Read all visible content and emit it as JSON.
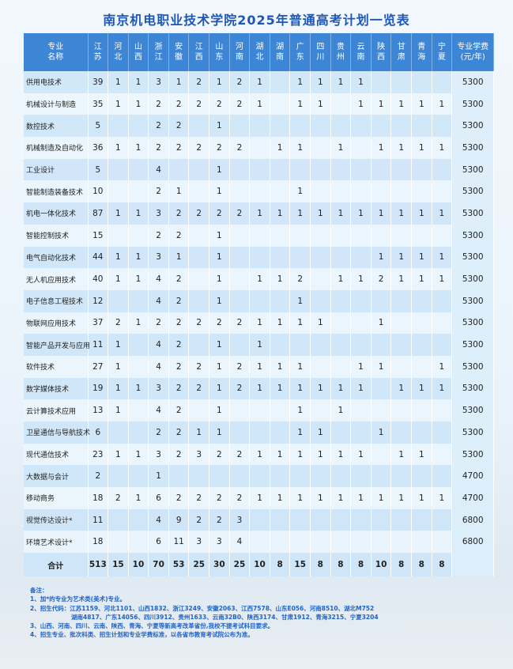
{
  "title": "南京机电职业技术学院2025年普通高考计划一览表",
  "header": {
    "major": "专业\n名称",
    "provinces": [
      "江苏",
      "河北",
      "山西",
      "浙江",
      "安徽",
      "江西",
      "山东",
      "河南",
      "湖北",
      "湖南",
      "广东",
      "四川",
      "贵州",
      "云南",
      "陕西",
      "甘肃",
      "青海",
      "宁夏"
    ],
    "fee": "专业学费\n(元/年)"
  },
  "rows": [
    {
      "name": "供用电技术",
      "v": [
        "39",
        "1",
        "1",
        "3",
        "1",
        "2",
        "1",
        "2",
        "1",
        "",
        "1",
        "1",
        "1",
        "1",
        "",
        "",
        "",
        ""
      ],
      "fee": "5300"
    },
    {
      "name": "机械设计与制造",
      "v": [
        "35",
        "1",
        "1",
        "2",
        "2",
        "2",
        "2",
        "2",
        "1",
        "",
        "1",
        "1",
        "",
        "1",
        "1",
        "1",
        "1",
        "1"
      ],
      "fee": "5300"
    },
    {
      "name": "数控技术",
      "v": [
        "5",
        "",
        "",
        "2",
        "2",
        "",
        "1",
        "",
        "",
        "",
        "",
        "",
        "",
        "",
        "",
        "",
        "",
        ""
      ],
      "fee": "5300"
    },
    {
      "name": "机械制造及自动化",
      "v": [
        "36",
        "1",
        "1",
        "2",
        "2",
        "2",
        "2",
        "2",
        "",
        "1",
        "1",
        "",
        "1",
        "",
        "1",
        "1",
        "1",
        "1"
      ],
      "fee": "5300"
    },
    {
      "name": "工业设计",
      "v": [
        "5",
        "",
        "",
        "4",
        "",
        "",
        "1",
        "",
        "",
        "",
        "",
        "",
        "",
        "",
        "",
        "",
        "",
        ""
      ],
      "fee": "5300"
    },
    {
      "name": "智能制造装备技术",
      "v": [
        "10",
        "",
        "",
        "2",
        "1",
        "",
        "1",
        "",
        "",
        "",
        "1",
        "",
        "",
        "",
        "",
        "",
        "",
        ""
      ],
      "fee": "5300"
    },
    {
      "name": "机电一体化技术",
      "v": [
        "87",
        "1",
        "1",
        "3",
        "2",
        "2",
        "2",
        "2",
        "1",
        "1",
        "1",
        "1",
        "1",
        "1",
        "1",
        "1",
        "1",
        "1"
      ],
      "fee": "5300"
    },
    {
      "name": "智能控制技术",
      "v": [
        "15",
        "",
        "",
        "2",
        "2",
        "",
        "1",
        "",
        "",
        "",
        "",
        "",
        "",
        "",
        "",
        "",
        "",
        ""
      ],
      "fee": "5300"
    },
    {
      "name": "电气自动化技术",
      "v": [
        "44",
        "1",
        "1",
        "3",
        "1",
        "",
        "1",
        "",
        "",
        "",
        "",
        "",
        "",
        "",
        "1",
        "1",
        "1",
        "1"
      ],
      "fee": "5300"
    },
    {
      "name": "无人机应用技术",
      "v": [
        "40",
        "1",
        "1",
        "4",
        "2",
        "",
        "1",
        "",
        "1",
        "1",
        "2",
        "",
        "1",
        "1",
        "2",
        "1",
        "1",
        "1"
      ],
      "fee": "5300"
    },
    {
      "name": "电子信息工程技术",
      "v": [
        "12",
        "",
        "",
        "4",
        "2",
        "",
        "1",
        "",
        "",
        "",
        "1",
        "",
        "",
        "",
        "",
        "",
        "",
        ""
      ],
      "fee": "5300"
    },
    {
      "name": "物联网应用技术",
      "v": [
        "37",
        "2",
        "1",
        "2",
        "2",
        "2",
        "2",
        "2",
        "1",
        "1",
        "1",
        "1",
        "",
        "",
        "1",
        "",
        "",
        ""
      ],
      "fee": "5300"
    },
    {
      "name": "智能产品开发与应用",
      "v": [
        "11",
        "1",
        "",
        "4",
        "2",
        "",
        "1",
        "",
        "1",
        "",
        "",
        "",
        "",
        "",
        "",
        "",
        "",
        ""
      ],
      "fee": "5300"
    },
    {
      "name": "软件技术",
      "v": [
        "27",
        "1",
        "",
        "4",
        "2",
        "2",
        "1",
        "2",
        "1",
        "1",
        "1",
        "",
        "",
        "1",
        "1",
        "",
        "",
        "1"
      ],
      "fee": "5300"
    },
    {
      "name": "数字媒体技术",
      "v": [
        "19",
        "1",
        "1",
        "3",
        "2",
        "2",
        "1",
        "2",
        "1",
        "1",
        "1",
        "1",
        "1",
        "1",
        "",
        "1",
        "1",
        "1"
      ],
      "fee": "5300"
    },
    {
      "name": "云计算技术应用",
      "v": [
        "13",
        "1",
        "",
        "4",
        "2",
        "",
        "1",
        "",
        "",
        "",
        "1",
        "",
        "1",
        "",
        "",
        "",
        "",
        ""
      ],
      "fee": "5300"
    },
    {
      "name": "卫星通信与导航技术",
      "v": [
        "6",
        "",
        "",
        "2",
        "2",
        "1",
        "1",
        "",
        "",
        "",
        "1",
        "1",
        "",
        "",
        "1",
        "",
        "",
        ""
      ],
      "fee": "5300"
    },
    {
      "name": "现代通信技术",
      "v": [
        "23",
        "1",
        "1",
        "3",
        "2",
        "3",
        "2",
        "2",
        "1",
        "1",
        "1",
        "1",
        "1",
        "1",
        "",
        "1",
        "1",
        ""
      ],
      "fee": "5300"
    },
    {
      "name": "大数据与会计",
      "v": [
        "2",
        "",
        "",
        "1",
        "",
        "",
        "",
        "",
        "",
        "",
        "",
        "",
        "",
        "",
        "",
        "",
        "",
        ""
      ],
      "fee": "4700"
    },
    {
      "name": "移动商务",
      "v": [
        "18",
        "2",
        "1",
        "6",
        "2",
        "2",
        "2",
        "2",
        "1",
        "1",
        "1",
        "1",
        "1",
        "1",
        "1",
        "1",
        "1",
        "1"
      ],
      "fee": "4700"
    },
    {
      "name": "视觉传达设计*",
      "v": [
        "11",
        "",
        "",
        "4",
        "9",
        "2",
        "2",
        "3",
        "",
        "",
        "",
        "",
        "",
        "",
        "",
        "",
        "",
        ""
      ],
      "fee": "6800"
    },
    {
      "name": "环境艺术设计*",
      "v": [
        "18",
        "",
        "",
        "6",
        "11",
        "3",
        "3",
        "4",
        "",
        "",
        "",
        "",
        "",
        "",
        "",
        "",
        "",
        ""
      ],
      "fee": "6800"
    }
  ],
  "total": {
    "name": "合计",
    "v": [
      "513",
      "15",
      "10",
      "70",
      "53",
      "25",
      "30",
      "25",
      "10",
      "8",
      "15",
      "8",
      "8",
      "8",
      "10",
      "8",
      "8",
      "8"
    ],
    "fee": ""
  },
  "notes": {
    "heading": "备注：",
    "n1": "1、加*的专业为艺术类(美术)专业。",
    "n2a": "2、招生代码：江苏1159、河北1101、山西1832、浙江3249、安徽2063、江西7578、山东E056、河南8510、湖北M752",
    "n2b": "湖南4817、广东14056、四川3912、贵州1633、云南32B0、陕西3174、甘肃1912、青海3215、宁夏3204",
    "n3": "3、山西、河南、四川、云南、陕西、青海、宁夏等新高考改革省份,我校不提考试科目要求。",
    "n4": "4、招生专业、批次科类、招生计划和专业学费标准，以各省市教育考试院公布为准。"
  }
}
